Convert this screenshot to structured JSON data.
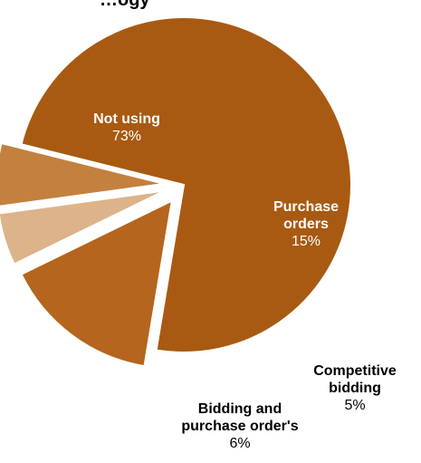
{
  "chart_data": {
    "type": "pie",
    "title": "…ogy",
    "slices": [
      {
        "label": "Not using",
        "value": 73,
        "value_label": "73%",
        "color": "#A85A12",
        "label_color": "#ffffff",
        "exploded": false
      },
      {
        "label": "Purchase orders",
        "value": 15,
        "value_label": "15%",
        "color": "#B5651D",
        "label_color": "#ffffff",
        "exploded": true
      },
      {
        "label": "Competitive bidding",
        "value": 5,
        "value_label": "5%",
        "color": "#DDB38A",
        "label_color": "#000000",
        "exploded": true
      },
      {
        "label": "Bidding  and purchase order's",
        "value": 6,
        "value_label": "6%",
        "color": "#C4803F",
        "label_color": "#000000",
        "exploded": true
      }
    ]
  }
}
